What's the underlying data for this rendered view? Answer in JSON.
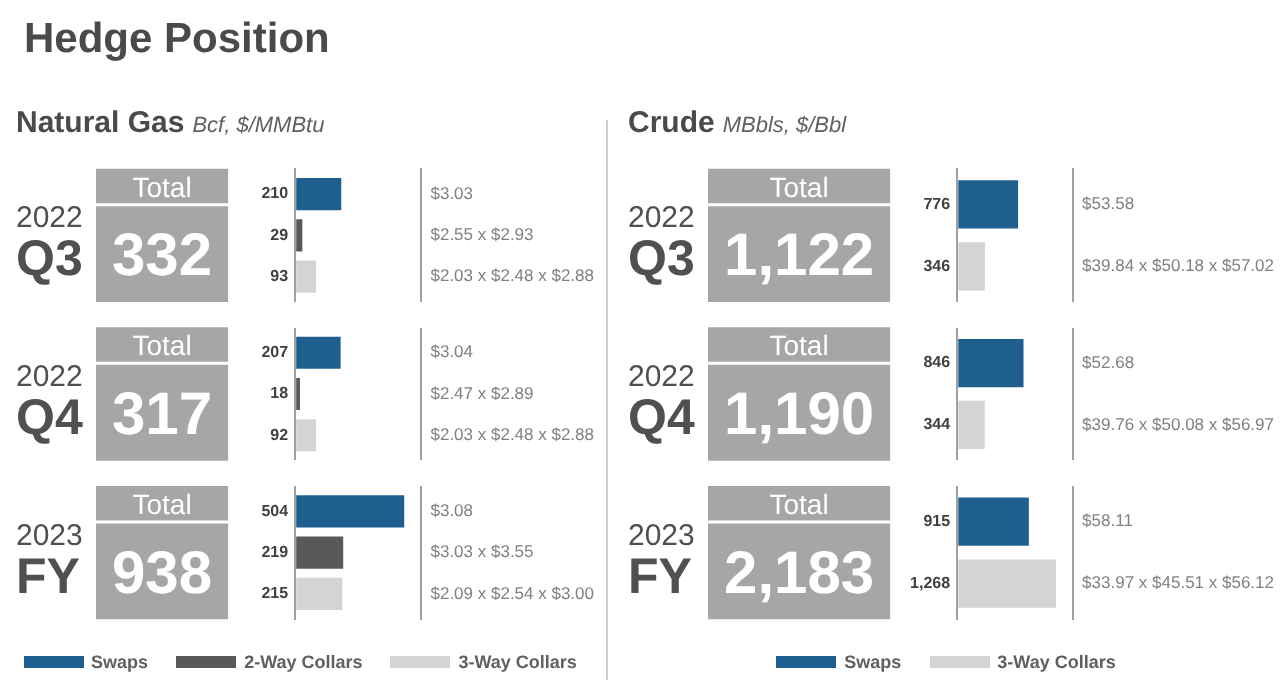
{
  "chart_data": [
    {
      "type": "other",
      "title": "Hedge Position"
    },
    {
      "type": "bar",
      "orientation": "horizontal",
      "title": "Natural Gas",
      "subtitle": "Bcf, $/MMBtu",
      "categories": [
        "2022 Q3",
        "2022 Q4",
        "2023 FY"
      ],
      "series": [
        {
          "name": "Swaps",
          "color": "#1f5f8f",
          "values": [
            210,
            207,
            504
          ]
        },
        {
          "name": "2-Way Collars",
          "color": "#595959",
          "values": [
            29,
            18,
            219
          ]
        },
        {
          "name": "3-Way Collars",
          "color": "#d4d4d4",
          "values": [
            93,
            92,
            215
          ]
        }
      ],
      "totals": [
        "332",
        "317",
        "938"
      ],
      "annotations": [
        "Total",
        "Total",
        "Total",
        "$3.03",
        "$2.55 x $2.93",
        "$2.03 x $2.48 x $2.88",
        "$3.04",
        "$2.47 x $2.89",
        "$2.03 x $2.48 x $2.88",
        "$3.08",
        "$3.03 x $3.55",
        "$2.09 x $2.54 x $3.00"
      ],
      "data_labels": true,
      "legend": "bottom"
    },
    {
      "type": "bar",
      "orientation": "horizontal",
      "title": "Crude",
      "subtitle": "MBbls, $/Bbl",
      "categories": [
        "2022 Q3",
        "2022 Q4",
        "2023 FY"
      ],
      "series": [
        {
          "name": "Swaps",
          "color": "#1f5f8f",
          "values": [
            776,
            846,
            915
          ],
          "value_labels": [
            "776",
            "846",
            "915"
          ]
        },
        {
          "name": "3-Way Collars",
          "color": "#d4d4d4",
          "values": [
            346,
            344,
            1268
          ],
          "value_labels": [
            "346",
            "344",
            "1,268"
          ]
        }
      ],
      "totals": [
        "1,122",
        "1,190",
        "2,183"
      ],
      "annotations": [
        "Total",
        "Total",
        "Total",
        "$53.58",
        "$39.84 x $50.18 x $57.02",
        "$52.68",
        "$39.76 x $50.08 x $56.97",
        "$58.11",
        "$33.97 x $45.51 x $56.12"
      ],
      "data_labels": true,
      "legend": "bottom"
    }
  ]
}
